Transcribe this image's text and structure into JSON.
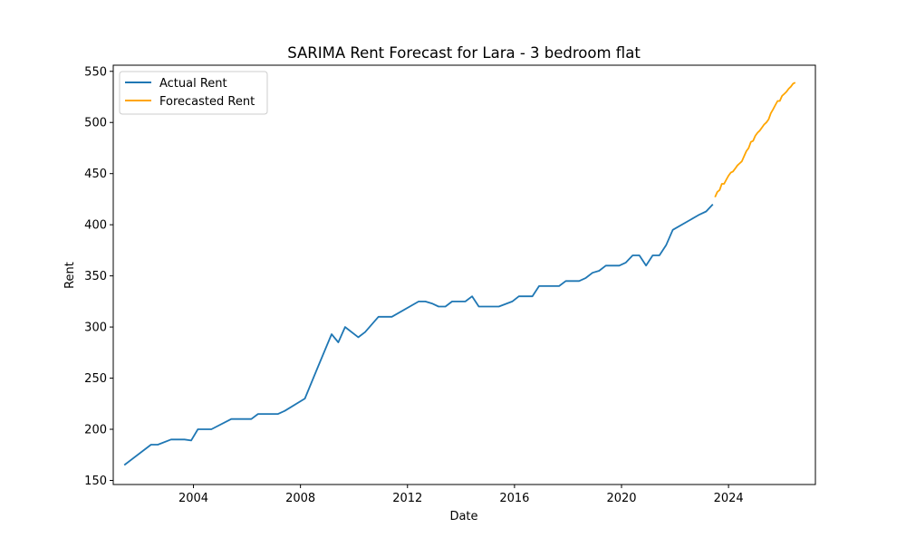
{
  "chart_data": {
    "type": "line",
    "title": "SARIMA Rent Forecast for Lara - 3 bedroom flat",
    "xlabel": "Date",
    "ylabel": "Rent",
    "xlim": [
      "2001-01-01",
      "2027-04-01"
    ],
    "ylim": [
      146,
      556
    ],
    "x_ticks": [
      "2004",
      "2008",
      "2012",
      "2016",
      "2020",
      "2024"
    ],
    "y_ticks": [
      "150",
      "200",
      "250",
      "300",
      "350",
      "400",
      "450",
      "500",
      "550"
    ],
    "grid": false,
    "legend_position": "top-left",
    "series": [
      {
        "name": "Actual Rent",
        "color": "#1f77b4",
        "points": [
          [
            "2001-06-01",
            165
          ],
          [
            "2002-06-01",
            185
          ],
          [
            "2002-09-01",
            185
          ],
          [
            "2003-03-01",
            190
          ],
          [
            "2003-09-01",
            190
          ],
          [
            "2003-12-01",
            189
          ],
          [
            "2004-03-01",
            200
          ],
          [
            "2004-09-01",
            200
          ],
          [
            "2005-06-01",
            210
          ],
          [
            "2005-12-01",
            210
          ],
          [
            "2006-03-01",
            210
          ],
          [
            "2006-06-01",
            215
          ],
          [
            "2007-03-01",
            215
          ],
          [
            "2007-06-01",
            218
          ],
          [
            "2008-03-01",
            230
          ],
          [
            "2008-09-01",
            262
          ],
          [
            "2009-03-01",
            293
          ],
          [
            "2009-06-01",
            285
          ],
          [
            "2009-09-01",
            300
          ],
          [
            "2010-03-01",
            290
          ],
          [
            "2010-06-01",
            295
          ],
          [
            "2010-12-01",
            310
          ],
          [
            "2011-06-01",
            310
          ],
          [
            "2012-06-01",
            325
          ],
          [
            "2012-09-01",
            325
          ],
          [
            "2012-12-01",
            323
          ],
          [
            "2013-03-01",
            320
          ],
          [
            "2013-06-01",
            320
          ],
          [
            "2013-09-01",
            325
          ],
          [
            "2014-03-01",
            325
          ],
          [
            "2014-06-01",
            330
          ],
          [
            "2014-09-01",
            320
          ],
          [
            "2015-06-01",
            320
          ],
          [
            "2015-12-01",
            325
          ],
          [
            "2016-03-01",
            330
          ],
          [
            "2016-09-01",
            330
          ],
          [
            "2016-12-01",
            340
          ],
          [
            "2017-09-01",
            340
          ],
          [
            "2017-12-01",
            345
          ],
          [
            "2018-06-01",
            345
          ],
          [
            "2018-09-01",
            348
          ],
          [
            "2018-12-01",
            353
          ],
          [
            "2019-03-01",
            355
          ],
          [
            "2019-06-01",
            360
          ],
          [
            "2019-12-01",
            360
          ],
          [
            "2020-03-01",
            363
          ],
          [
            "2020-06-01",
            370
          ],
          [
            "2020-09-01",
            370
          ],
          [
            "2020-12-01",
            360
          ],
          [
            "2021-03-01",
            370
          ],
          [
            "2021-06-01",
            370
          ],
          [
            "2021-09-01",
            380
          ],
          [
            "2021-12-01",
            395
          ],
          [
            "2022-12-01",
            410
          ],
          [
            "2023-03-01",
            413
          ],
          [
            "2023-06-01",
            420
          ]
        ]
      },
      {
        "name": "Forecasted Rent",
        "color": "#ffa500",
        "points": [
          [
            "2023-07-01",
            427
          ],
          [
            "2023-08-01",
            432
          ],
          [
            "2023-09-01",
            434
          ],
          [
            "2023-10-01",
            440
          ],
          [
            "2023-11-01",
            440
          ],
          [
            "2023-12-01",
            444
          ],
          [
            "2024-01-01",
            448
          ],
          [
            "2024-02-01",
            451
          ],
          [
            "2024-03-01",
            452
          ],
          [
            "2024-04-01",
            455
          ],
          [
            "2024-05-01",
            458
          ],
          [
            "2024-06-01",
            460
          ],
          [
            "2024-07-01",
            462
          ],
          [
            "2024-08-01",
            467
          ],
          [
            "2024-09-01",
            472
          ],
          [
            "2024-10-01",
            475
          ],
          [
            "2024-11-01",
            481
          ],
          [
            "2024-12-01",
            482
          ],
          [
            "2025-01-01",
            487
          ],
          [
            "2025-02-01",
            490
          ],
          [
            "2025-03-01",
            492
          ],
          [
            "2025-04-01",
            495
          ],
          [
            "2025-05-01",
            498
          ],
          [
            "2025-06-01",
            500
          ],
          [
            "2025-07-01",
            503
          ],
          [
            "2025-08-01",
            509
          ],
          [
            "2025-09-01",
            513
          ],
          [
            "2025-10-01",
            517
          ],
          [
            "2025-11-01",
            521
          ],
          [
            "2025-12-01",
            521
          ],
          [
            "2026-01-01",
            526
          ],
          [
            "2026-02-01",
            528
          ],
          [
            "2026-03-01",
            530
          ],
          [
            "2026-04-01",
            533
          ],
          [
            "2026-05-01",
            535
          ],
          [
            "2026-06-01",
            538
          ],
          [
            "2026-07-01",
            539
          ]
        ]
      }
    ]
  }
}
